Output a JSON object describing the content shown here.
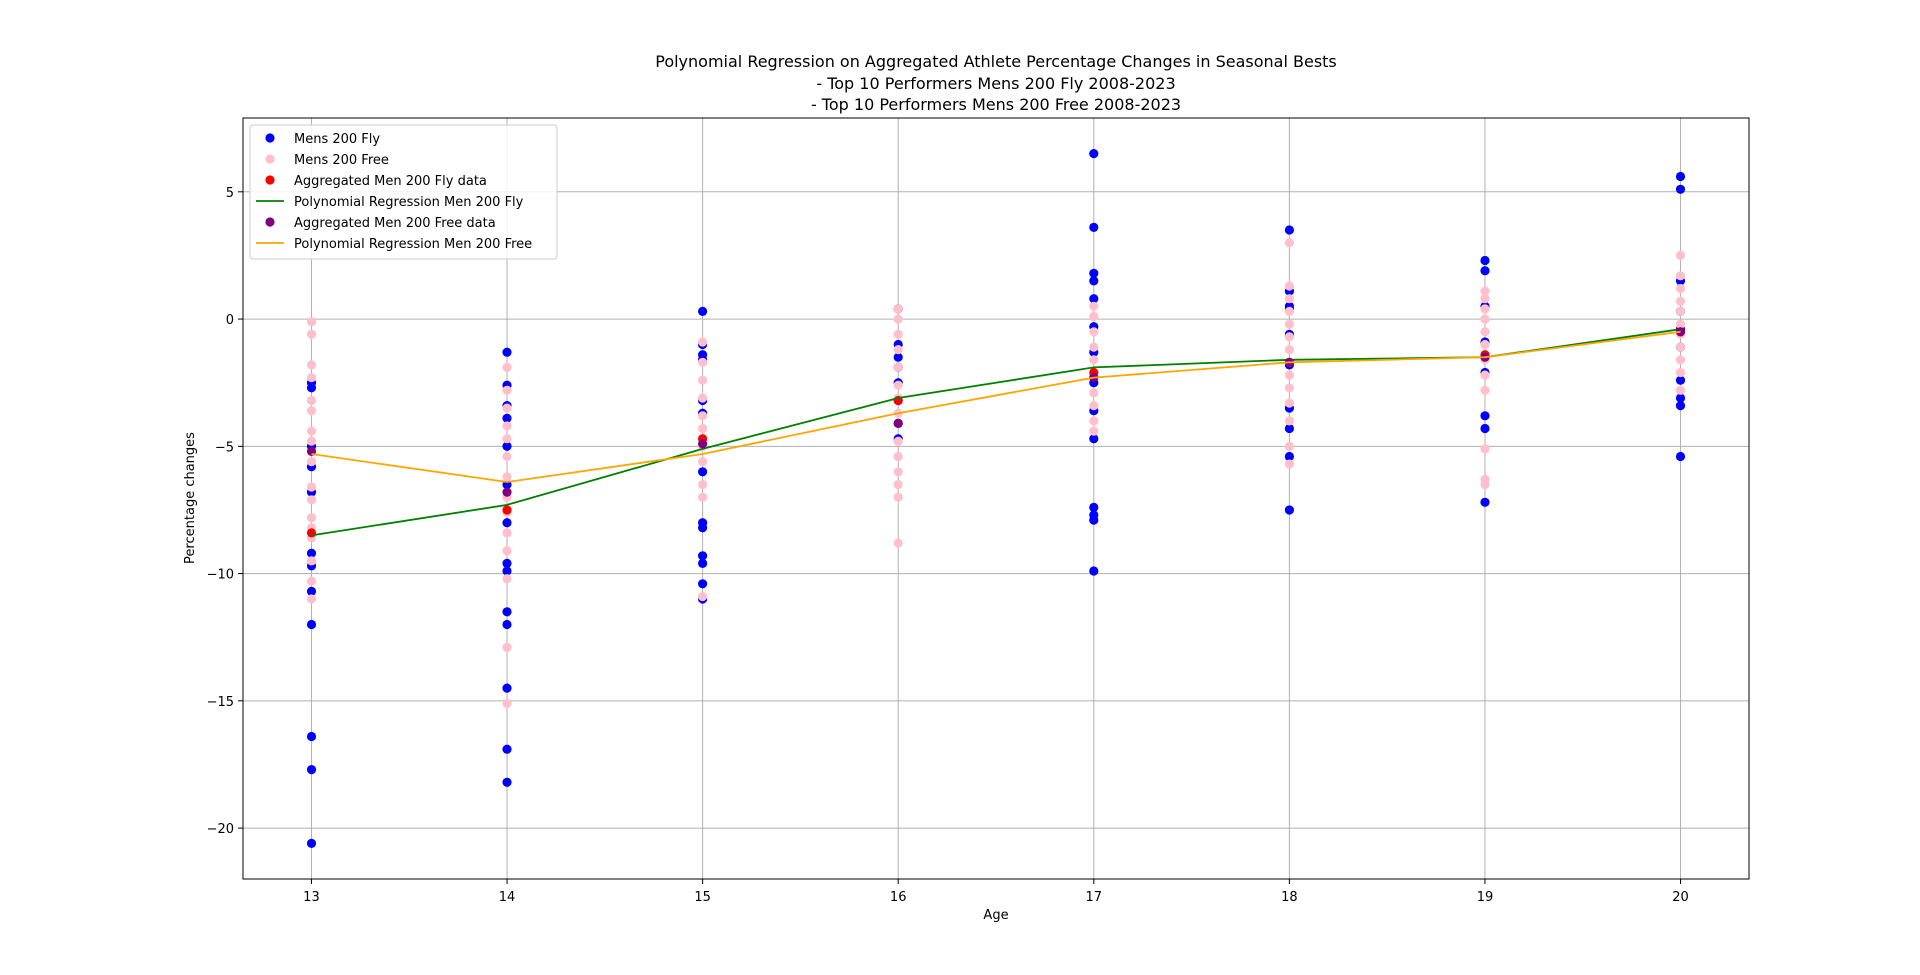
{
  "chart_data": {
    "type": "scatter",
    "title_lines": [
      "Polynomial Regression on Aggregated Athlete Percentage Changes in Seasonal Bests",
      "- Top 10 Performers Mens 200 Fly 2008-2023",
      "- Top 10 Performers Mens 200 Free 2008-2023"
    ],
    "xlabel": "Age",
    "ylabel": "Percentage changes",
    "xlim": [
      12.65,
      20.35
    ],
    "ylim": [
      -22.0,
      7.9
    ],
    "xticks": [
      13,
      14,
      15,
      16,
      17,
      18,
      19,
      20
    ],
    "yticks": [
      -20,
      -15,
      -10,
      -5,
      0,
      5
    ],
    "grid": true,
    "legend_position": "upper-left",
    "series": [
      {
        "name": "Mens 200 Fly",
        "kind": "scatter",
        "color": "#0000ff",
        "points": [
          [
            13,
            -20.6
          ],
          [
            13,
            -17.7
          ],
          [
            13,
            -16.4
          ],
          [
            13,
            -12.0
          ],
          [
            13,
            -10.7
          ],
          [
            13,
            -9.7
          ],
          [
            13,
            -9.2
          ],
          [
            13,
            -6.8
          ],
          [
            13,
            -5.8
          ],
          [
            13,
            -5.0
          ],
          [
            13,
            -2.7
          ],
          [
            13,
            -2.5
          ],
          [
            14,
            -18.2
          ],
          [
            14,
            -16.9
          ],
          [
            14,
            -14.5
          ],
          [
            14,
            -12.0
          ],
          [
            14,
            -11.5
          ],
          [
            14,
            -9.9
          ],
          [
            14,
            -9.6
          ],
          [
            14,
            -8.0
          ],
          [
            14,
            -6.5
          ],
          [
            14,
            -5.0
          ],
          [
            14,
            -3.9
          ],
          [
            14,
            -3.4
          ],
          [
            14,
            -2.6
          ],
          [
            14,
            -1.3
          ],
          [
            15,
            -11.0
          ],
          [
            15,
            -10.4
          ],
          [
            15,
            -9.6
          ],
          [
            15,
            -9.3
          ],
          [
            15,
            -8.2
          ],
          [
            15,
            -8.0
          ],
          [
            15,
            -6.0
          ],
          [
            15,
            -3.7
          ],
          [
            15,
            -3.2
          ],
          [
            15,
            -1.6
          ],
          [
            15,
            -1.4
          ],
          [
            15,
            -1.0
          ],
          [
            15,
            0.3
          ],
          [
            16,
            -4.7
          ],
          [
            16,
            -4.1
          ],
          [
            16,
            -3.2
          ],
          [
            16,
            -2.5
          ],
          [
            16,
            -1.9
          ],
          [
            16,
            -1.5
          ],
          [
            16,
            -1.0
          ],
          [
            16,
            0.4
          ],
          [
            17,
            -9.9
          ],
          [
            17,
            -7.9
          ],
          [
            17,
            -7.7
          ],
          [
            17,
            -7.4
          ],
          [
            17,
            -4.7
          ],
          [
            17,
            -3.6
          ],
          [
            17,
            -2.5
          ],
          [
            17,
            -1.3
          ],
          [
            17,
            -0.3
          ],
          [
            17,
            0.8
          ],
          [
            17,
            1.5
          ],
          [
            17,
            1.8
          ],
          [
            17,
            3.6
          ],
          [
            17,
            6.5
          ],
          [
            18,
            -7.5
          ],
          [
            18,
            -5.4
          ],
          [
            18,
            -4.3
          ],
          [
            18,
            -3.5
          ],
          [
            18,
            -1.8
          ],
          [
            18,
            -0.6
          ],
          [
            18,
            0.4
          ],
          [
            18,
            0.5
          ],
          [
            18,
            1.1
          ],
          [
            18,
            3.5
          ],
          [
            19,
            -7.2
          ],
          [
            19,
            -4.3
          ],
          [
            19,
            -3.8
          ],
          [
            19,
            -2.1
          ],
          [
            19,
            -1.5
          ],
          [
            19,
            -0.9
          ],
          [
            19,
            0.5
          ],
          [
            19,
            1.9
          ],
          [
            19,
            2.3
          ],
          [
            20,
            -5.4
          ],
          [
            20,
            -3.4
          ],
          [
            20,
            -3.1
          ],
          [
            20,
            -2.4
          ],
          [
            20,
            -1.1
          ],
          [
            20,
            -0.4
          ],
          [
            20,
            0.3
          ],
          [
            20,
            1.5
          ],
          [
            20,
            5.1
          ],
          [
            20,
            5.6
          ]
        ]
      },
      {
        "name": "Mens 200 Free",
        "kind": "scatter",
        "color": "#ffc0cb",
        "points": [
          [
            13,
            -11.0
          ],
          [
            13,
            -10.3
          ],
          [
            13,
            -9.5
          ],
          [
            13,
            -8.6
          ],
          [
            13,
            -8.2
          ],
          [
            13,
            -7.8
          ],
          [
            13,
            -7.1
          ],
          [
            13,
            -6.6
          ],
          [
            13,
            -5.6
          ],
          [
            13,
            -4.8
          ],
          [
            13,
            -4.4
          ],
          [
            13,
            -3.6
          ],
          [
            13,
            -3.2
          ],
          [
            13,
            -2.3
          ],
          [
            13,
            -1.8
          ],
          [
            13,
            -0.6
          ],
          [
            13,
            -0.1
          ],
          [
            14,
            -15.1
          ],
          [
            14,
            -12.9
          ],
          [
            14,
            -10.2
          ],
          [
            14,
            -9.1
          ],
          [
            14,
            -8.4
          ],
          [
            14,
            -7.6
          ],
          [
            14,
            -7.0
          ],
          [
            14,
            -6.2
          ],
          [
            14,
            -5.4
          ],
          [
            14,
            -4.7
          ],
          [
            14,
            -4.2
          ],
          [
            14,
            -3.5
          ],
          [
            14,
            -2.8
          ],
          [
            14,
            -1.9
          ],
          [
            15,
            -10.9
          ],
          [
            15,
            -7.0
          ],
          [
            15,
            -6.5
          ],
          [
            15,
            -5.6
          ],
          [
            15,
            -5.0
          ],
          [
            15,
            -4.3
          ],
          [
            15,
            -3.8
          ],
          [
            15,
            -3.1
          ],
          [
            15,
            -2.4
          ],
          [
            15,
            -1.7
          ],
          [
            15,
            -0.9
          ],
          [
            16,
            -8.8
          ],
          [
            16,
            -7.0
          ],
          [
            16,
            -6.5
          ],
          [
            16,
            -6.0
          ],
          [
            16,
            -5.4
          ],
          [
            16,
            -4.8
          ],
          [
            16,
            -3.7
          ],
          [
            16,
            -3.1
          ],
          [
            16,
            -2.6
          ],
          [
            16,
            -1.9
          ],
          [
            16,
            -1.2
          ],
          [
            16,
            -0.6
          ],
          [
            16,
            0.0
          ],
          [
            16,
            0.4
          ],
          [
            17,
            -4.4
          ],
          [
            17,
            -4.0
          ],
          [
            17,
            -3.4
          ],
          [
            17,
            -2.9
          ],
          [
            17,
            -2.2
          ],
          [
            17,
            -1.6
          ],
          [
            17,
            -1.1
          ],
          [
            17,
            -0.5
          ],
          [
            17,
            0.1
          ],
          [
            17,
            0.5
          ],
          [
            18,
            -5.7
          ],
          [
            18,
            -5.0
          ],
          [
            18,
            -4.0
          ],
          [
            18,
            -3.3
          ],
          [
            18,
            -2.7
          ],
          [
            18,
            -2.2
          ],
          [
            18,
            -1.7
          ],
          [
            18,
            -1.2
          ],
          [
            18,
            -0.7
          ],
          [
            18,
            -0.2
          ],
          [
            18,
            0.3
          ],
          [
            18,
            0.8
          ],
          [
            18,
            1.3
          ],
          [
            18,
            3.0
          ],
          [
            19,
            -6.5
          ],
          [
            19,
            -6.3
          ],
          [
            19,
            -5.1
          ],
          [
            19,
            -2.8
          ],
          [
            19,
            -2.2
          ],
          [
            19,
            -1.6
          ],
          [
            19,
            -1.0
          ],
          [
            19,
            -0.5
          ],
          [
            19,
            0.0
          ],
          [
            19,
            0.4
          ],
          [
            19,
            0.8
          ],
          [
            19,
            1.1
          ],
          [
            20,
            -2.8
          ],
          [
            20,
            -2.1
          ],
          [
            20,
            -1.6
          ],
          [
            20,
            -1.1
          ],
          [
            20,
            -0.6
          ],
          [
            20,
            -0.2
          ],
          [
            20,
            0.3
          ],
          [
            20,
            0.7
          ],
          [
            20,
            1.2
          ],
          [
            20,
            1.7
          ],
          [
            20,
            2.5
          ]
        ]
      },
      {
        "name": "Aggregated Men 200 Fly data",
        "kind": "scatter",
        "color": "#ff0000",
        "points": [
          [
            13,
            -8.4
          ],
          [
            14,
            -7.5
          ],
          [
            15,
            -4.7
          ],
          [
            16,
            -3.2
          ],
          [
            17,
            -2.1
          ],
          [
            18,
            -1.7
          ],
          [
            19,
            -1.4
          ],
          [
            20,
            -0.5
          ]
        ]
      },
      {
        "name": "Polynomial Regression Men 200 Fly",
        "kind": "line",
        "color": "#008000",
        "points": [
          [
            13,
            -8.5
          ],
          [
            14,
            -7.3
          ],
          [
            15,
            -5.1
          ],
          [
            16,
            -3.1
          ],
          [
            17,
            -1.9
          ],
          [
            18,
            -1.6
          ],
          [
            19,
            -1.5
          ],
          [
            20,
            -0.4
          ]
        ]
      },
      {
        "name": "Aggregated Men 200 Free data",
        "kind": "scatter",
        "color": "#800080",
        "points": [
          [
            13,
            -5.2
          ],
          [
            14,
            -6.8
          ],
          [
            15,
            -4.9
          ],
          [
            16,
            -4.1
          ],
          [
            17,
            -2.3
          ],
          [
            18,
            -1.7
          ],
          [
            19,
            -1.5
          ],
          [
            20,
            -0.5
          ]
        ]
      },
      {
        "name": "Polynomial Regression Men 200 Free",
        "kind": "line",
        "color": "#ffa500",
        "points": [
          [
            13,
            -5.3
          ],
          [
            14,
            -6.4
          ],
          [
            15,
            -5.3
          ],
          [
            16,
            -3.7
          ],
          [
            17,
            -2.3
          ],
          [
            18,
            -1.7
          ],
          [
            19,
            -1.5
          ],
          [
            20,
            -0.5
          ]
        ]
      }
    ],
    "legend_order": [
      0,
      1,
      2,
      3,
      4,
      5
    ]
  }
}
